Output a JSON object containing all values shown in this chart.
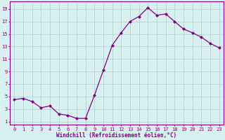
{
  "x": [
    0,
    1,
    2,
    3,
    4,
    5,
    6,
    7,
    8,
    9,
    10,
    11,
    12,
    13,
    14,
    15,
    16,
    17,
    18,
    19,
    20,
    21,
    22,
    23
  ],
  "y": [
    4.5,
    4.7,
    4.2,
    3.2,
    3.5,
    2.2,
    2.0,
    1.5,
    1.5,
    5.2,
    9.2,
    13.2,
    15.2,
    17.0,
    17.8,
    19.2,
    18.0,
    18.2,
    17.0,
    15.8,
    15.2,
    14.5,
    13.5,
    12.8
  ],
  "line_color": "#800080",
  "marker": "D",
  "marker_size": 2.0,
  "bg_color": "#d8f0f0",
  "grid_color": "#aacfcf",
  "xlabel": "Windchill (Refroidissement éolien,°C)",
  "xlabel_fontsize": 5.5,
  "yticks": [
    1,
    3,
    5,
    7,
    9,
    11,
    13,
    15,
    17,
    19
  ],
  "xticks": [
    0,
    1,
    2,
    3,
    4,
    5,
    6,
    7,
    8,
    9,
    10,
    11,
    12,
    13,
    14,
    15,
    16,
    17,
    18,
    19,
    20,
    21,
    22,
    23
  ],
  "ylim": [
    0.5,
    20.2
  ],
  "xlim": [
    -0.5,
    23.5
  ],
  "tick_color": "#800080",
  "tick_fontsize": 5.0,
  "axis_color": "#800080",
  "linewidth": 0.9
}
